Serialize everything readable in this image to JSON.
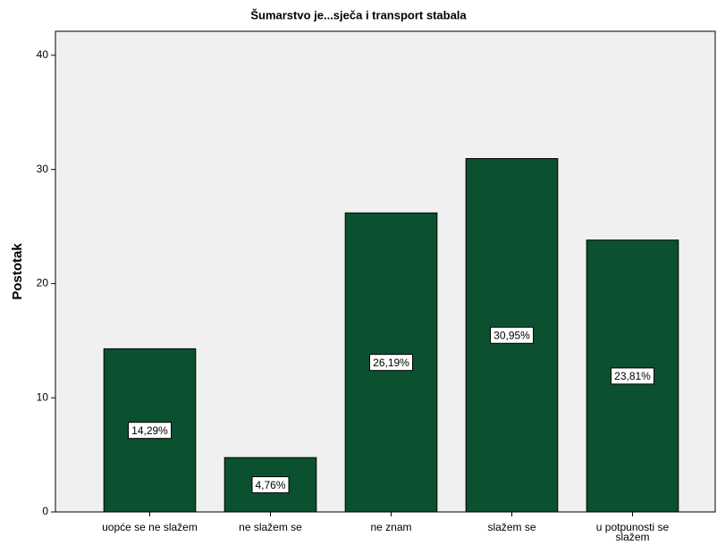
{
  "chart_data": {
    "type": "bar",
    "title": "Šumarstvo je...sječa i transport stabala",
    "y_label": "Postotak",
    "categories": [
      "uopće se ne slažem",
      "ne slažem se",
      "ne znam",
      "slažem se",
      "u potpunosti se slažem"
    ],
    "values": [
      14.29,
      4.76,
      26.19,
      30.95,
      23.81
    ],
    "value_labels": [
      "14,29%",
      "4,76%",
      "26,19%",
      "30,95%",
      "23,81%"
    ],
    "color": "#0b5130",
    "ylim": [
      0,
      42.1
    ],
    "yticks": [
      0,
      10,
      20,
      30,
      40
    ],
    "grid": false
  }
}
